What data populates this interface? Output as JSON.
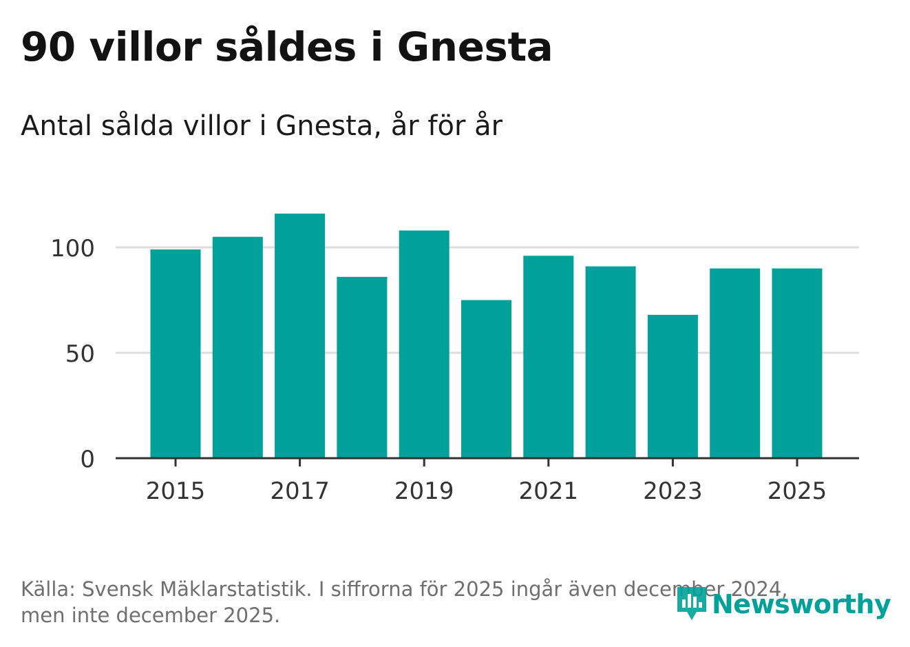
{
  "header": {
    "title": "90 villor såldes i Gnesta",
    "subtitle": "Antal sålda villor i Gnesta, år för år"
  },
  "footer": {
    "source_line1": "Källa: Svensk Mäklarstatistik. I siffrorna för 2025 ingår även december 2024,",
    "source_line2": "men inte december 2025.",
    "brand": "Newsworthy"
  },
  "colors": {
    "bar": "#00a19a",
    "brand": "#00a19a",
    "grid": "#dddddd",
    "axis": "#333333",
    "tick_text": "#333333"
  },
  "chart_data": {
    "type": "bar",
    "title": "Antal sålda villor i Gnesta, år för år",
    "xlabel": "",
    "ylabel": "",
    "categories": [
      "2015",
      "2016",
      "2017",
      "2018",
      "2019",
      "2020",
      "2021",
      "2022",
      "2023",
      "2024",
      "2025"
    ],
    "values": [
      99,
      105,
      116,
      86,
      108,
      75,
      96,
      91,
      68,
      90,
      90
    ],
    "ylim": [
      0,
      125
    ],
    "yticks": [
      0,
      50,
      100
    ],
    "xtick_labels": [
      "2015",
      "2017",
      "2019",
      "2021",
      "2023",
      "2025"
    ],
    "grid": true
  }
}
